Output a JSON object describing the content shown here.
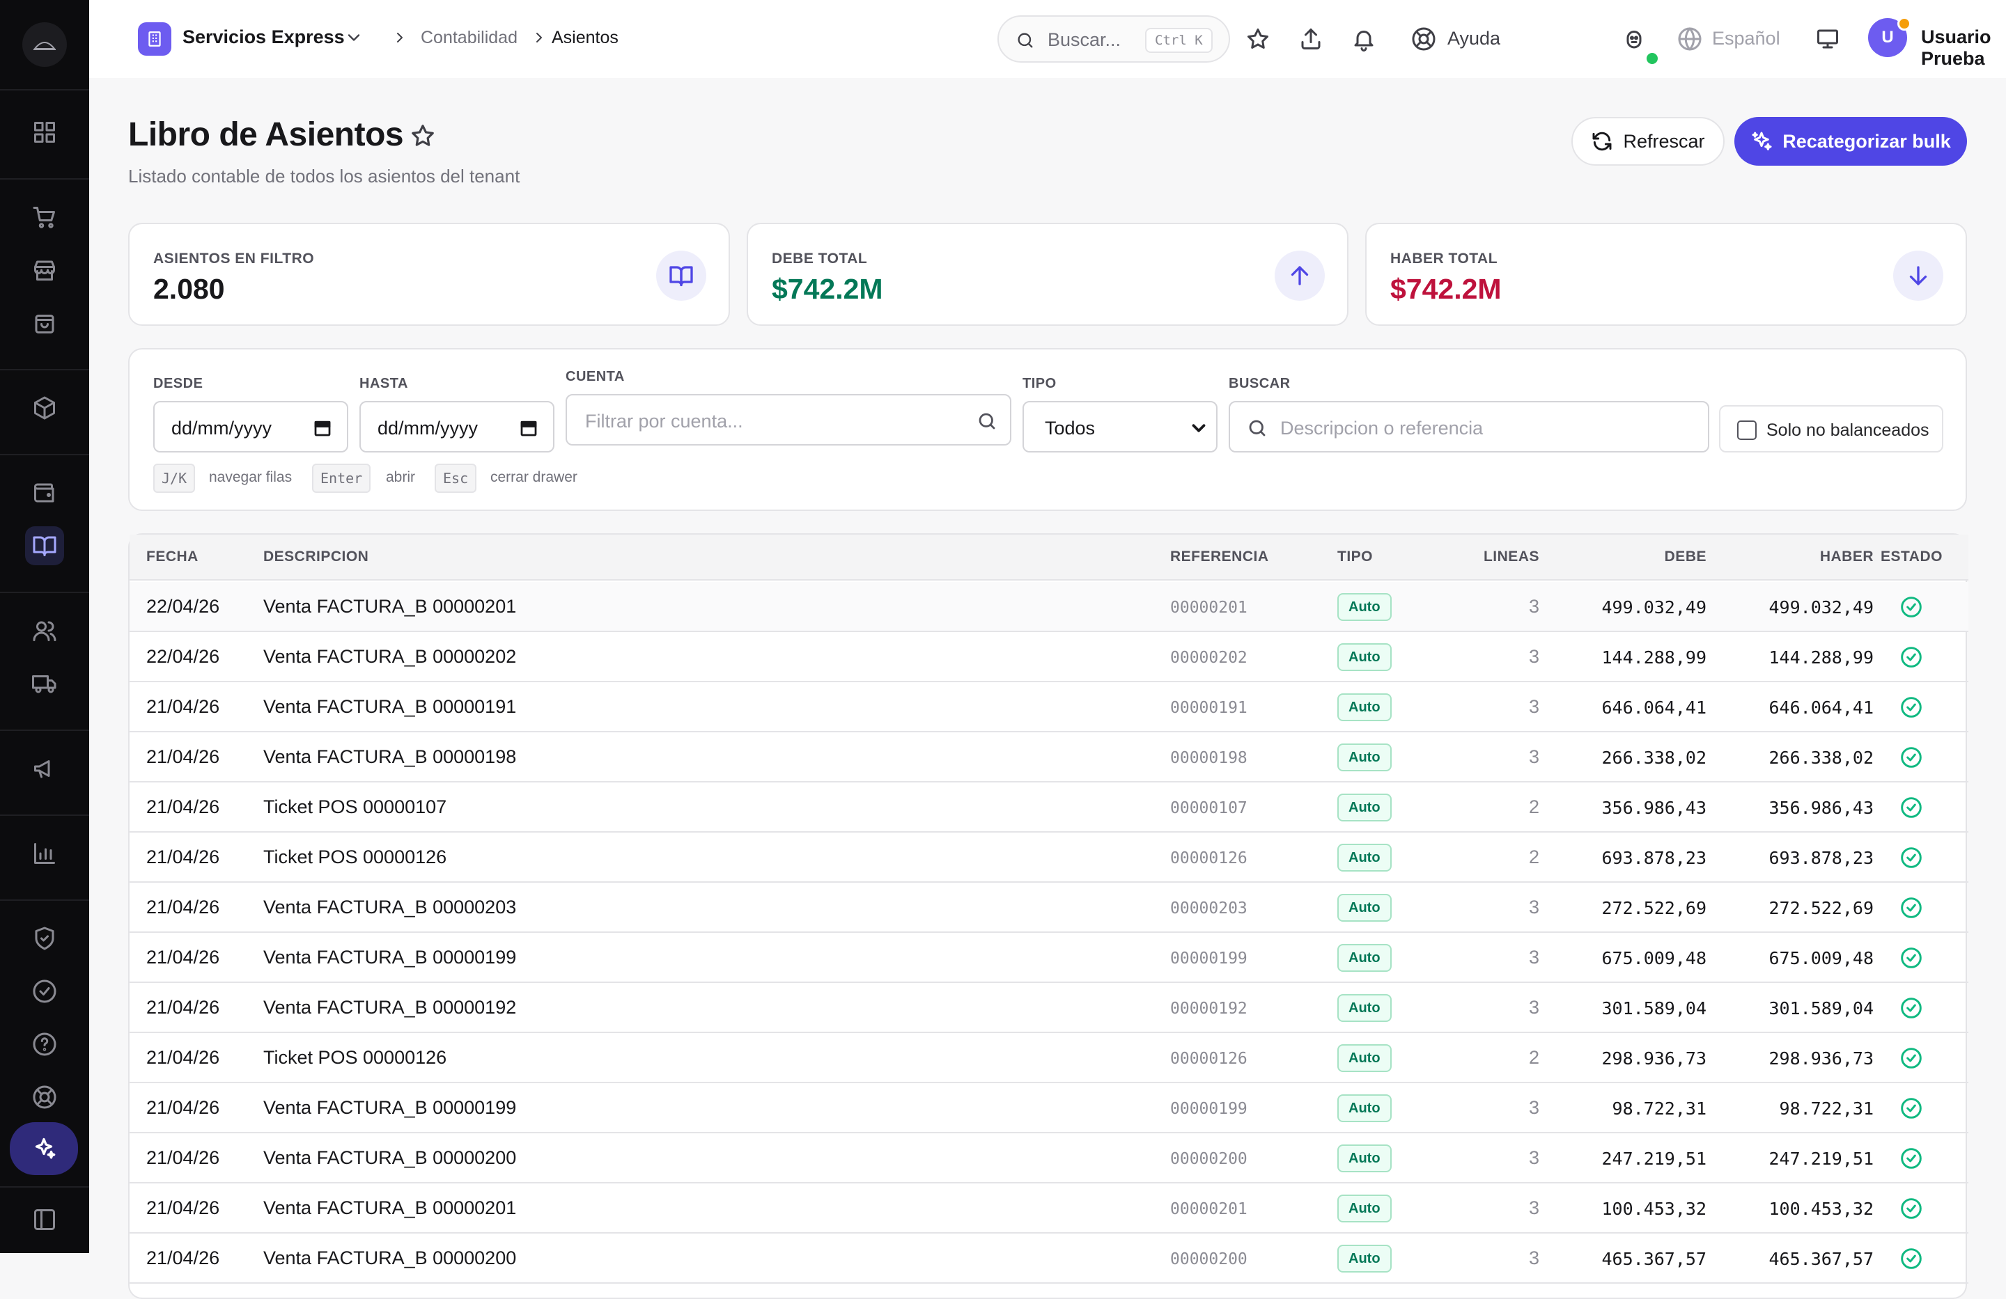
{
  "topbar": {
    "tenant": "Servicios Express",
    "breadcrumb": [
      "Contabilidad",
      "Asientos"
    ],
    "search_placeholder": "Buscar...",
    "search_shortcut": "Ctrl K",
    "help": "Ayuda",
    "language": "Español",
    "user_initial": "U",
    "user_name": "Usuario Prueba"
  },
  "header": {
    "title": "Libro de Asientos",
    "subtitle": "Listado contable de todos los asientos del tenant",
    "refresh": "Refrescar",
    "recategorize": "Recategorizar bulk"
  },
  "stats": [
    {
      "label": "ASIENTOS EN FILTRO",
      "value": "2.080",
      "icon": "book-icon"
    },
    {
      "label": "DEBE TOTAL",
      "value": "$742.2M",
      "icon": "arrow-up-icon"
    },
    {
      "label": "HABER TOTAL",
      "value": "$742.2M",
      "icon": "arrow-down-icon"
    }
  ],
  "filters": {
    "desde_label": "DESDE",
    "desde_value": "dd/mm/yyyy",
    "hasta_label": "HASTA",
    "hasta_value": "dd/mm/yyyy",
    "cuenta_label": "CUENTA",
    "cuenta_placeholder": "Filtrar por cuenta...",
    "tipo_label": "TIPO",
    "tipo_value": "Todos",
    "buscar_label": "BUSCAR",
    "buscar_placeholder": "Descripcion o referencia",
    "unbalanced_label": "Solo no balanceados",
    "shortcuts": [
      {
        "key": "J/K",
        "label": "navegar filas"
      },
      {
        "key": "Enter",
        "label": "abrir"
      },
      {
        "key": "Esc",
        "label": "cerrar drawer"
      }
    ]
  },
  "table": {
    "headers": {
      "fecha": "FECHA",
      "descripcion": "DESCRIPCION",
      "referencia": "REFERENCIA",
      "tipo": "TIPO",
      "lineas": "LINEAS",
      "debe": "DEBE",
      "haber": "HABER",
      "estado": "ESTADO"
    },
    "rows": [
      {
        "fecha": "22/04/26",
        "descripcion": "Venta FACTURA_B 00000201",
        "referencia": "00000201",
        "tipo": "Auto",
        "lineas": "3",
        "debe": "499.032,49",
        "haber": "499.032,49"
      },
      {
        "fecha": "22/04/26",
        "descripcion": "Venta FACTURA_B 00000202",
        "referencia": "00000202",
        "tipo": "Auto",
        "lineas": "3",
        "debe": "144.288,99",
        "haber": "144.288,99"
      },
      {
        "fecha": "21/04/26",
        "descripcion": "Venta FACTURA_B 00000191",
        "referencia": "00000191",
        "tipo": "Auto",
        "lineas": "3",
        "debe": "646.064,41",
        "haber": "646.064,41"
      },
      {
        "fecha": "21/04/26",
        "descripcion": "Venta FACTURA_B 00000198",
        "referencia": "00000198",
        "tipo": "Auto",
        "lineas": "3",
        "debe": "266.338,02",
        "haber": "266.338,02"
      },
      {
        "fecha": "21/04/26",
        "descripcion": "Ticket POS 00000107",
        "referencia": "00000107",
        "tipo": "Auto",
        "lineas": "2",
        "debe": "356.986,43",
        "haber": "356.986,43"
      },
      {
        "fecha": "21/04/26",
        "descripcion": "Ticket POS 00000126",
        "referencia": "00000126",
        "tipo": "Auto",
        "lineas": "2",
        "debe": "693.878,23",
        "haber": "693.878,23"
      },
      {
        "fecha": "21/04/26",
        "descripcion": "Venta FACTURA_B 00000203",
        "referencia": "00000203",
        "tipo": "Auto",
        "lineas": "3",
        "debe": "272.522,69",
        "haber": "272.522,69"
      },
      {
        "fecha": "21/04/26",
        "descripcion": "Venta FACTURA_B 00000199",
        "referencia": "00000199",
        "tipo": "Auto",
        "lineas": "3",
        "debe": "675.009,48",
        "haber": "675.009,48"
      },
      {
        "fecha": "21/04/26",
        "descripcion": "Venta FACTURA_B 00000192",
        "referencia": "00000192",
        "tipo": "Auto",
        "lineas": "3",
        "debe": "301.589,04",
        "haber": "301.589,04"
      },
      {
        "fecha": "21/04/26",
        "descripcion": "Ticket POS 00000126",
        "referencia": "00000126",
        "tipo": "Auto",
        "lineas": "2",
        "debe": "298.936,73",
        "haber": "298.936,73"
      },
      {
        "fecha": "21/04/26",
        "descripcion": "Venta FACTURA_B 00000199",
        "referencia": "00000199",
        "tipo": "Auto",
        "lineas": "3",
        "debe": "98.722,31",
        "haber": "98.722,31"
      },
      {
        "fecha": "21/04/26",
        "descripcion": "Venta FACTURA_B 00000200",
        "referencia": "00000200",
        "tipo": "Auto",
        "lineas": "3",
        "debe": "247.219,51",
        "haber": "247.219,51"
      },
      {
        "fecha": "21/04/26",
        "descripcion": "Venta FACTURA_B 00000201",
        "referencia": "00000201",
        "tipo": "Auto",
        "lineas": "3",
        "debe": "100.453,32",
        "haber": "100.453,32"
      },
      {
        "fecha": "21/04/26",
        "descripcion": "Venta FACTURA_B 00000200",
        "referencia": "00000200",
        "tipo": "Auto",
        "lineas": "3",
        "debe": "465.367,57",
        "haber": "465.367,57"
      }
    ]
  },
  "colors": {
    "accent": "#4f46e5",
    "debe": "#047857",
    "haber": "#be123c",
    "ok": "#10b981"
  }
}
